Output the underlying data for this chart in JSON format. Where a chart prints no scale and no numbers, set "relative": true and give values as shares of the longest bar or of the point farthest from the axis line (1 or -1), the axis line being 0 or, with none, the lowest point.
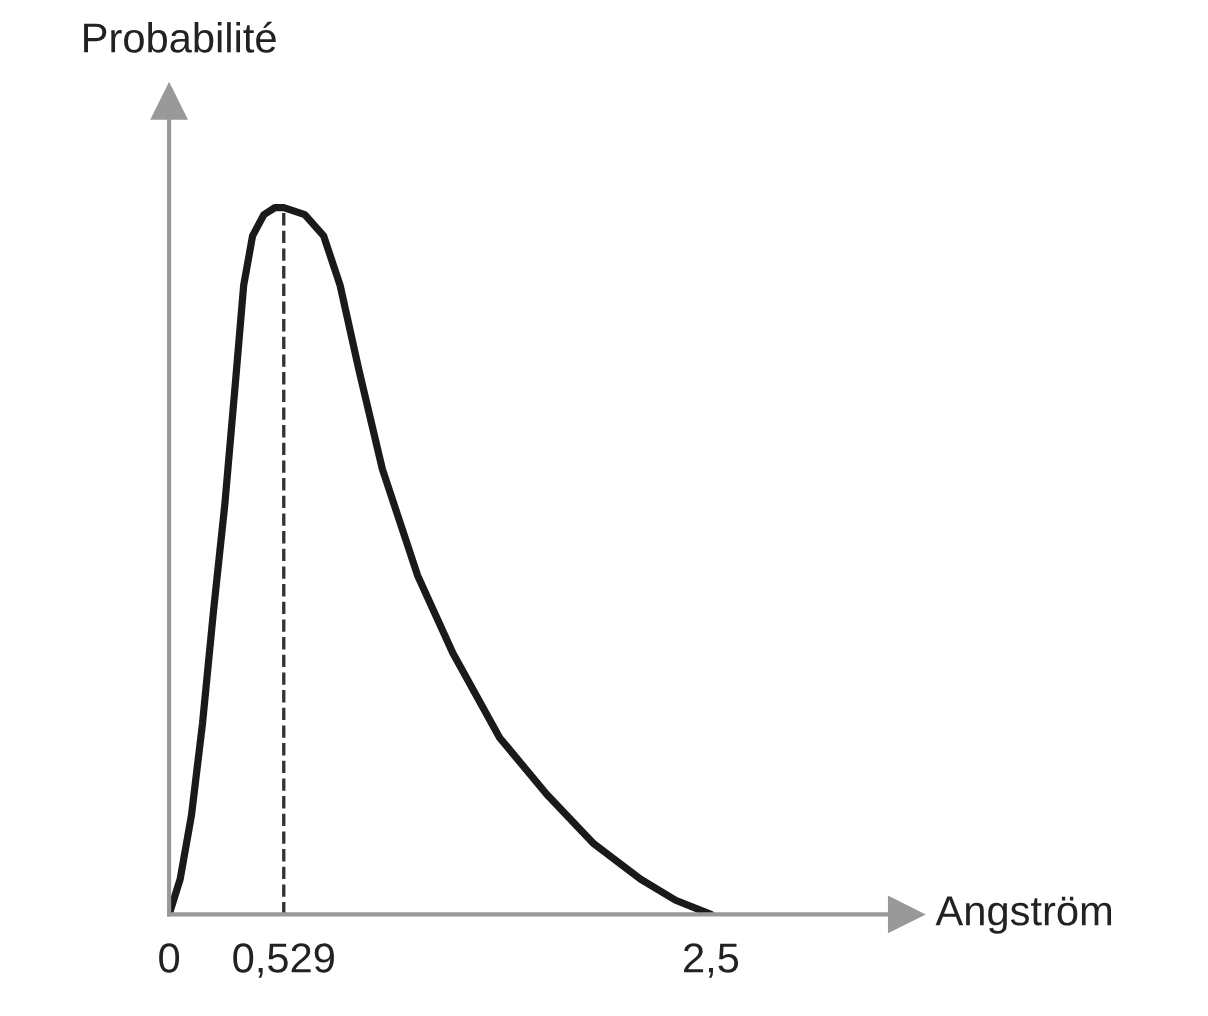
{
  "chart_data": {
    "type": "line",
    "relative": true,
    "xlabel": "Angström",
    "ylabel": "Probabilité",
    "x": [
      0,
      0.051,
      0.103,
      0.154,
      0.205,
      0.257,
      0.308,
      0.344,
      0.385,
      0.437,
      0.488,
      0.529,
      0.626,
      0.713,
      0.789,
      0.876,
      0.984,
      1.146,
      1.309,
      1.525,
      1.742,
      1.959,
      2.175,
      2.337,
      2.5
    ],
    "series": [
      {
        "color": "#1a1a1a",
        "values": [
          0,
          0.05,
          0.14,
          0.27,
          0.43,
          0.58,
          0.76,
          0.89,
          0.96,
          0.99,
          1,
          1,
          0.99,
          0.96,
          0.89,
          0.77,
          0.63,
          0.48,
          0.37,
          0.25,
          0.17,
          0.1,
          0.05,
          0.02,
          0
        ]
      }
    ],
    "xlim": [
      0,
      3.4
    ],
    "xticks": [
      0,
      {
        "value": 0.529,
        "label": "0,529"
      },
      {
        "value": 2.5,
        "label": "2,5"
      }
    ],
    "tick_labels": "x",
    "grid": false,
    "legend": false,
    "marker": "none",
    "line_style": "solid",
    "ref_lines": [
      {
        "axis": "x",
        "value": 0.529,
        "label": null,
        "color": "#333333",
        "line_style": "dashed"
      }
    ]
  }
}
